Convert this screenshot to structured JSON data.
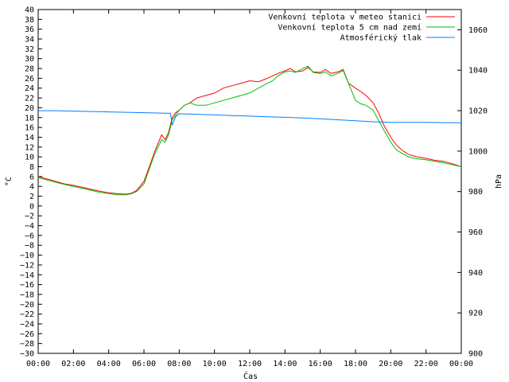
{
  "chart_data": {
    "type": "line",
    "title": "",
    "xlabel": "Čas",
    "ylabel_left": "°C",
    "ylabel_right": "hPa",
    "xlim": [
      0,
      24
    ],
    "ylim_left": [
      -30,
      40
    ],
    "ylim_right": [
      900,
      1070
    ],
    "x_ticks": [
      0,
      2,
      4,
      6,
      8,
      10,
      12,
      14,
      16,
      18,
      20,
      22,
      24
    ],
    "x_tick_labels": [
      "00:00",
      "02:00",
      "04:00",
      "06:00",
      "08:00",
      "10:00",
      "12:00",
      "14:00",
      "16:00",
      "18:00",
      "20:00",
      "22:00",
      "00:00"
    ],
    "y_left_ticks": [
      40,
      38,
      36,
      34,
      32,
      30,
      28,
      26,
      24,
      22,
      20,
      18,
      16,
      14,
      12,
      10,
      8,
      6,
      4,
      2,
      0,
      -2,
      -4,
      -6,
      -8,
      -10,
      -12,
      -14,
      -16,
      -18,
      -20,
      -22,
      -24,
      -26,
      -28,
      -30
    ],
    "y_right_ticks": [
      1060,
      1040,
      1020,
      1000,
      980,
      960,
      940,
      920,
      900
    ],
    "grid": false,
    "legend_position": "top-right",
    "series": [
      {
        "name": "Venkovní teplota v meteo stanici",
        "axis": "left",
        "color": "#ff0000",
        "x": [
          0,
          0.5,
          1,
          1.5,
          2,
          2.5,
          3,
          3.5,
          4,
          4.5,
          5,
          5.3,
          5.6,
          6,
          6.3,
          6.6,
          7,
          7.2,
          7.4,
          7.6,
          7.8,
          8,
          8.3,
          8.6,
          9,
          9.5,
          10,
          10.5,
          11,
          11.5,
          12,
          12.5,
          13,
          13.3,
          13.6,
          14,
          14.3,
          14.6,
          15,
          15.3,
          15.6,
          16,
          16.3,
          16.6,
          17,
          17.3,
          17.6,
          18,
          18.3,
          18.6,
          19,
          19.3,
          19.6,
          20,
          20.3,
          20.6,
          21,
          21.5,
          22,
          22.5,
          23,
          23.5,
          24
        ],
        "y": [
          6,
          5.5,
          5,
          4.5,
          4.2,
          3.8,
          3.4,
          3,
          2.7,
          2.5,
          2.4,
          2.6,
          3.2,
          5,
          8,
          11,
          14.5,
          13.5,
          15,
          18,
          19,
          19.5,
          20.5,
          21,
          22,
          22.5,
          23,
          24,
          24.5,
          25,
          25.5,
          25.3,
          26,
          26.5,
          27,
          27.5,
          28,
          27.3,
          27.5,
          28.2,
          27.3,
          27.2,
          27.8,
          27,
          27.3,
          27.8,
          25,
          24,
          23.3,
          22.5,
          21,
          19,
          16.5,
          14,
          12.5,
          11.5,
          10.5,
          10,
          9.7,
          9.3,
          9.1,
          8.6,
          8
        ]
      },
      {
        "name": "Venkovní teplota 5 cm nad zemí",
        "axis": "left",
        "color": "#00c000",
        "x": [
          0,
          0.5,
          1,
          1.5,
          2,
          2.5,
          3,
          3.5,
          4,
          4.5,
          5,
          5.3,
          5.6,
          6,
          6.3,
          6.6,
          7,
          7.2,
          7.4,
          7.6,
          7.8,
          8,
          8.3,
          8.6,
          9,
          9.5,
          10,
          10.5,
          11,
          11.5,
          12,
          12.5,
          13,
          13.3,
          13.6,
          14,
          14.3,
          14.6,
          15,
          15.3,
          15.6,
          16,
          16.3,
          16.6,
          17,
          17.3,
          17.6,
          18,
          18.3,
          18.6,
          19,
          19.3,
          19.6,
          20,
          20.3,
          20.6,
          21,
          21.5,
          22,
          22.5,
          23,
          23.5,
          24
        ],
        "y": [
          5.8,
          5.3,
          4.8,
          4.4,
          4,
          3.6,
          3.2,
          2.8,
          2.5,
          2.3,
          2.3,
          2.5,
          3,
          4.5,
          7.5,
          10.5,
          13.5,
          13,
          14.5,
          17.5,
          18.5,
          19.5,
          20.5,
          21,
          20.5,
          20.5,
          21,
          21.5,
          22,
          22.5,
          23,
          24,
          25,
          25.5,
          26.5,
          27.3,
          27.5,
          27.2,
          28,
          28.5,
          27.2,
          27,
          27.3,
          26.5,
          27,
          27.6,
          25,
          21.5,
          20.8,
          20.5,
          19.5,
          17.5,
          15.5,
          13,
          11.5,
          10.8,
          10,
          9.6,
          9.4,
          9.1,
          8.8,
          8.4,
          8
        ]
      },
      {
        "name": "Atmosférický tlak",
        "axis": "right",
        "color": "#0080ff",
        "x": [
          0,
          1,
          2,
          3,
          4,
          5,
          6,
          7,
          7.5,
          7.6,
          7.8,
          8,
          9,
          10,
          11,
          12,
          13,
          14,
          15,
          16,
          17,
          18,
          19,
          20,
          21,
          22,
          23,
          24
        ],
        "y": [
          1020,
          1020,
          1019.8,
          1019.6,
          1019.4,
          1019.2,
          1019,
          1018.8,
          1018.7,
          1013,
          1017,
          1018.5,
          1018.2,
          1017.9,
          1017.6,
          1017.3,
          1017,
          1016.7,
          1016.4,
          1016,
          1015.5,
          1015,
          1014.5,
          1014.2,
          1014.2,
          1014.2,
          1014.1,
          1014
        ]
      }
    ]
  }
}
